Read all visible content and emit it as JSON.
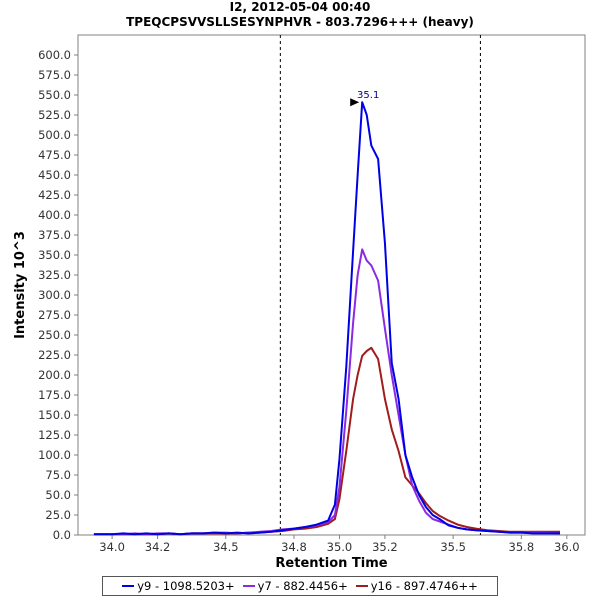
{
  "title": "I2, 2012-05-04 00:40",
  "subtitle": "TPEQCPSVVSLLSESYNPHVR - 803.7296+++ (heavy)",
  "chart_data": {
    "type": "line",
    "xlabel": "Retention Time",
    "ylabel": "Intensity 10^3",
    "xlim": [
      33.85,
      36.08
    ],
    "ylim": [
      0,
      625
    ],
    "x_ticks": [
      "34.0",
      "34.2",
      "34.5",
      "34.8",
      "35.0",
      "35.2",
      "35.5",
      "35.8",
      "36.0"
    ],
    "y_ticks": [
      "0.0",
      "25.0",
      "50.0",
      "75.0",
      "100.0",
      "125.0",
      "150.0",
      "175.0",
      "200.0",
      "225.0",
      "250.0",
      "275.0",
      "300.0",
      "325.0",
      "350.0",
      "375.0",
      "400.0",
      "425.0",
      "450.0",
      "475.0",
      "500.0",
      "525.0",
      "550.0",
      "575.0",
      "600.0"
    ],
    "grid": false,
    "boundary_lines": [
      34.74,
      35.62
    ],
    "peak_annotation": {
      "label": "35.1",
      "x": 35.1,
      "y": 541
    },
    "legend_position": "bottom",
    "x": [
      33.92,
      34.0,
      34.05,
      34.1,
      34.15,
      34.2,
      34.25,
      34.3,
      34.35,
      34.4,
      34.45,
      34.5,
      34.55,
      34.6,
      34.65,
      34.7,
      34.75,
      34.8,
      34.85,
      34.9,
      34.95,
      34.98,
      35.0,
      35.03,
      35.06,
      35.08,
      35.1,
      35.12,
      35.14,
      35.17,
      35.2,
      35.23,
      35.26,
      35.29,
      35.32,
      35.35,
      35.38,
      35.41,
      35.44,
      35.48,
      35.52,
      35.56,
      35.6,
      35.65,
      35.7,
      35.75,
      35.8,
      35.85,
      35.9,
      35.97
    ],
    "series": [
      {
        "name": "y9 - 1098.5203+",
        "color": "#0000e6",
        "values": [
          1,
          1,
          2,
          1,
          2,
          1,
          2,
          1,
          2,
          2,
          3,
          2,
          3,
          2,
          3,
          4,
          6,
          8,
          10,
          13,
          18,
          38,
          95,
          210,
          355,
          450,
          541,
          525,
          487,
          470,
          365,
          215,
          170,
          100,
          72,
          50,
          35,
          25,
          20,
          12,
          9,
          7,
          6,
          5,
          4,
          3,
          3,
          2,
          2,
          2
        ]
      },
      {
        "name": "y7 - 882.4456+",
        "color": "#8a2be2",
        "values": [
          1,
          1,
          1,
          2,
          1,
          2,
          2,
          1,
          2,
          2,
          3,
          3,
          2,
          3,
          4,
          5,
          7,
          8,
          10,
          12,
          16,
          25,
          60,
          155,
          265,
          325,
          357,
          343,
          337,
          318,
          258,
          200,
          150,
          100,
          62,
          43,
          28,
          20,
          17,
          13,
          9,
          7,
          6,
          5,
          4,
          3,
          3,
          3,
          3,
          2
        ]
      },
      {
        "name": "y16 - 897.4746++",
        "color": "#a11c1c",
        "values": [
          1,
          1,
          1,
          1,
          1,
          1,
          2,
          1,
          2,
          2,
          2,
          2,
          2,
          3,
          3,
          4,
          5,
          7,
          8,
          10,
          14,
          20,
          45,
          105,
          170,
          200,
          224,
          230,
          234,
          220,
          170,
          132,
          105,
          72,
          62,
          52,
          40,
          30,
          24,
          18,
          13,
          10,
          8,
          6,
          5,
          4,
          4,
          4,
          4,
          4
        ]
      }
    ]
  }
}
